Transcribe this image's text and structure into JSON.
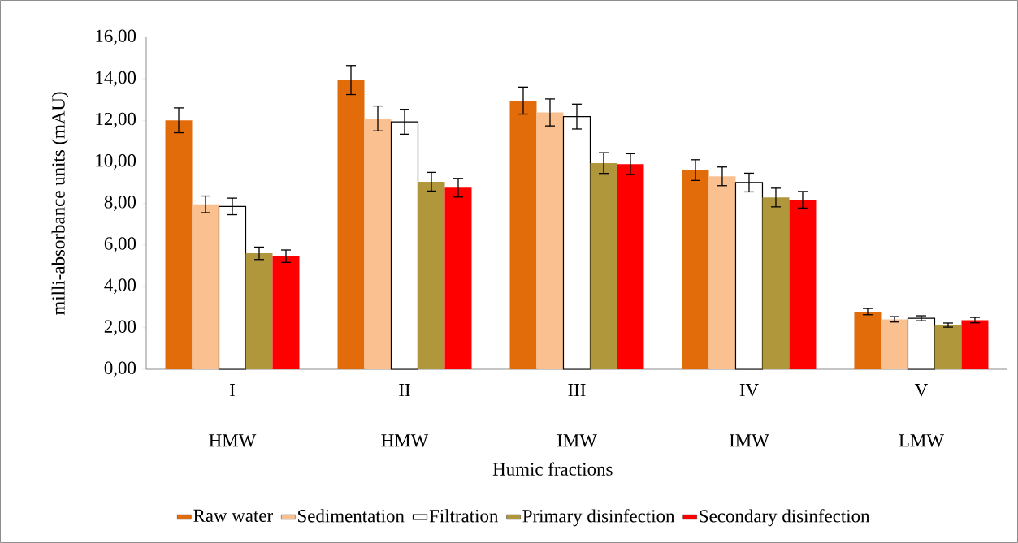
{
  "chart_data": {
    "type": "bar",
    "xlabel": "Humic fractions",
    "ylabel": "milli-absorbance units (mAU)",
    "categories": [
      "I",
      "II",
      "III",
      "IV",
      "V"
    ],
    "annotations": [
      "HMW",
      "HMW",
      "IMW",
      "IMW",
      "LMW"
    ],
    "series": [
      {
        "name": "Raw water",
        "color": "#e36c0a",
        "values": [
          12.0,
          13.94,
          12.95,
          9.6,
          2.78
        ],
        "errors": [
          0.6,
          0.7,
          0.65,
          0.5,
          0.15
        ]
      },
      {
        "name": "Sedimentation",
        "color": "#fac090",
        "values": [
          7.95,
          12.09,
          12.38,
          9.3,
          2.41
        ],
        "errors": [
          0.4,
          0.6,
          0.65,
          0.45,
          0.13
        ]
      },
      {
        "name": "Filtration",
        "color": "#ffffff",
        "values": [
          7.85,
          11.93,
          12.18,
          9.0,
          2.46
        ],
        "errors": [
          0.4,
          0.6,
          0.6,
          0.45,
          0.12
        ]
      },
      {
        "name": "Primary disinfection",
        "color": "#b0973c",
        "values": [
          5.59,
          9.04,
          9.94,
          8.28,
          2.13
        ],
        "errors": [
          0.3,
          0.45,
          0.5,
          0.45,
          0.1
        ]
      },
      {
        "name": "Secondary disinfection",
        "color": "#ff0000",
        "values": [
          5.45,
          8.75,
          9.89,
          8.17,
          2.37
        ],
        "errors": [
          0.3,
          0.45,
          0.5,
          0.4,
          0.13
        ]
      }
    ],
    "ylim": [
      0,
      16
    ],
    "yticks": [
      {
        "value": 0,
        "label": "0,00"
      },
      {
        "value": 2,
        "label": "2,00"
      },
      {
        "value": 4,
        "label": "4,00"
      },
      {
        "value": 6,
        "label": "6,00"
      },
      {
        "value": 8,
        "label": "8,00"
      },
      {
        "value": 10,
        "label": "10,00"
      },
      {
        "value": 12,
        "label": "12,00"
      },
      {
        "value": 14,
        "label": "14,00"
      },
      {
        "value": 16,
        "label": "16,00"
      }
    ],
    "grid": false,
    "legend": "bottom"
  }
}
